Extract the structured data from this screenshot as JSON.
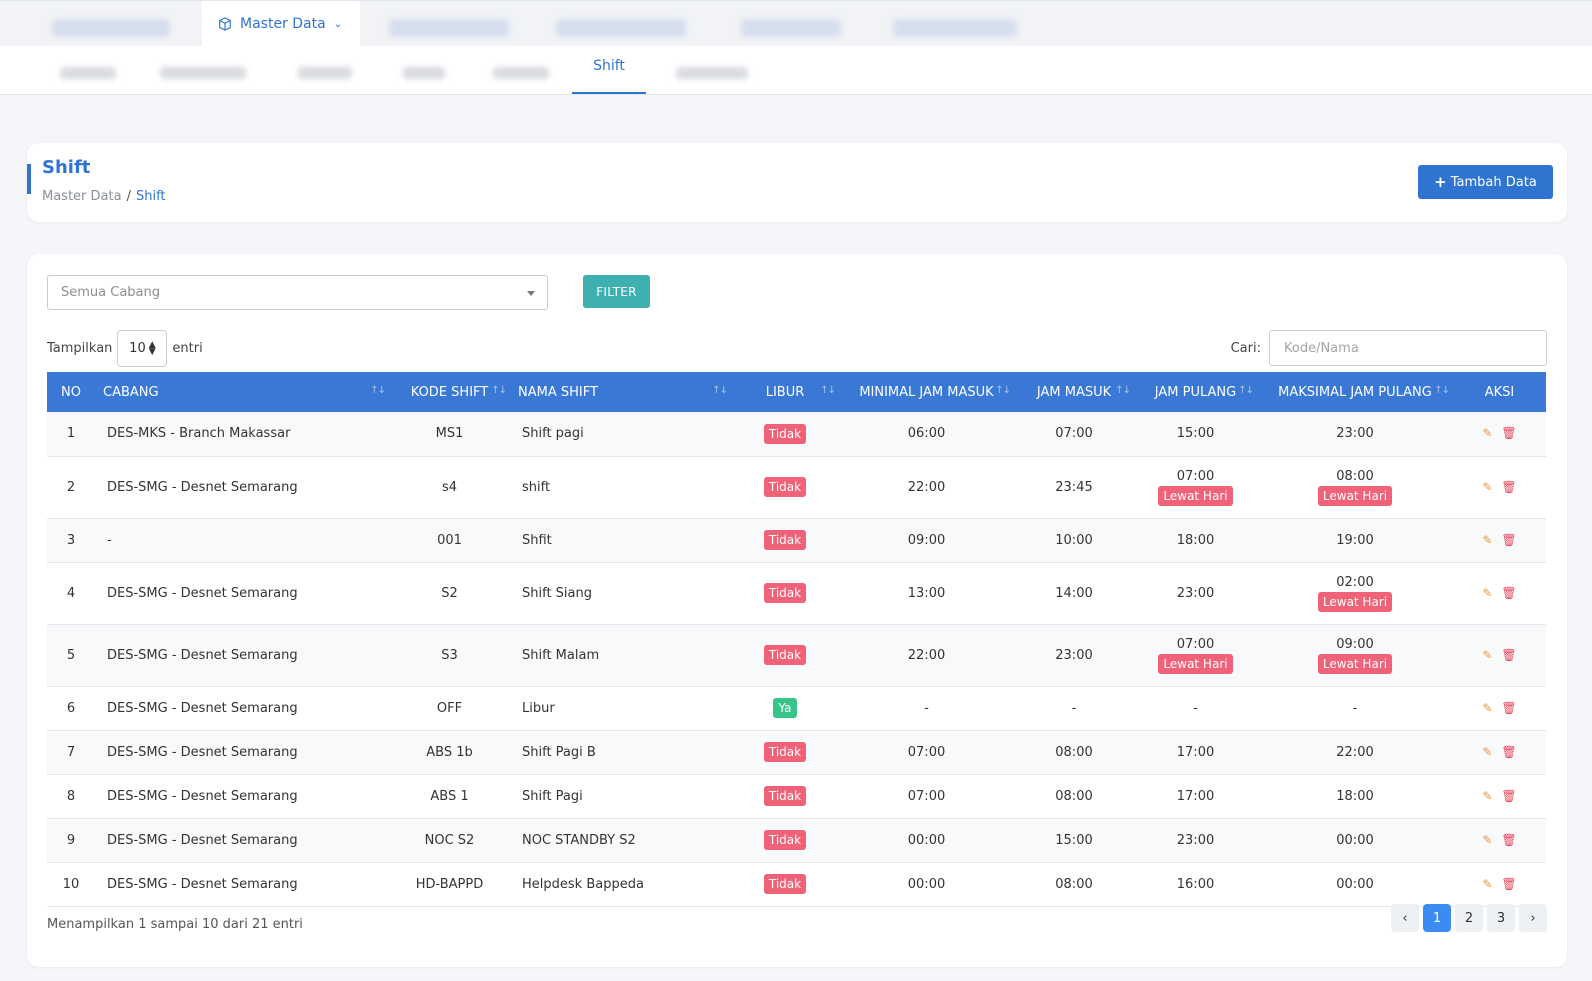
{
  "nav": {
    "active_menu": "Master Data",
    "active_tab": "Shift"
  },
  "header": {
    "title": "Shift",
    "breadcrumb": [
      "Master Data",
      "Shift"
    ],
    "add_button": "Tambah Data"
  },
  "filter": {
    "branch_value": "Semua Cabang",
    "button": "FILTER"
  },
  "length": {
    "prefix": "Tampilkan",
    "value": "10",
    "suffix": "entri"
  },
  "search": {
    "label": "Cari:",
    "placeholder": "Kode/Nama"
  },
  "table": {
    "columns": [
      "NO",
      "CABANG",
      "KODE SHIFT",
      "NAMA SHIFT",
      "LIBUR",
      "MINIMAL JAM MASUK",
      "JAM MASUK",
      "JAM PULANG",
      "MAKSIMAL JAM PULANG",
      "AKSI"
    ],
    "rows": [
      {
        "no": "1",
        "cabang": "DES-MKS - Branch Makassar",
        "kode": "MS1",
        "nama": "Shift pagi",
        "libur": "Tidak",
        "min_masuk": "06:00",
        "masuk": "07:00",
        "pulang": "15:00",
        "pulang_badge": "",
        "max_pulang": "23:00",
        "max_badge": ""
      },
      {
        "no": "2",
        "cabang": "DES-SMG - Desnet Semarang",
        "kode": "s4",
        "nama": "shift",
        "libur": "Tidak",
        "min_masuk": "22:00",
        "masuk": "23:45",
        "pulang": "07:00",
        "pulang_badge": "Lewat Hari",
        "max_pulang": "08:00",
        "max_badge": "Lewat Hari"
      },
      {
        "no": "3",
        "cabang": "-",
        "kode": "001",
        "nama": "Shfit",
        "libur": "Tidak",
        "min_masuk": "09:00",
        "masuk": "10:00",
        "pulang": "18:00",
        "pulang_badge": "",
        "max_pulang": "19:00",
        "max_badge": ""
      },
      {
        "no": "4",
        "cabang": "DES-SMG - Desnet Semarang",
        "kode": "S2",
        "nama": "Shift Siang",
        "libur": "Tidak",
        "min_masuk": "13:00",
        "masuk": "14:00",
        "pulang": "23:00",
        "pulang_badge": "",
        "max_pulang": "02:00",
        "max_badge": "Lewat Hari"
      },
      {
        "no": "5",
        "cabang": "DES-SMG - Desnet Semarang",
        "kode": "S3",
        "nama": "Shift Malam",
        "libur": "Tidak",
        "min_masuk": "22:00",
        "masuk": "23:00",
        "pulang": "07:00",
        "pulang_badge": "Lewat Hari",
        "max_pulang": "09:00",
        "max_badge": "Lewat Hari"
      },
      {
        "no": "6",
        "cabang": "DES-SMG - Desnet Semarang",
        "kode": "OFF",
        "nama": "Libur",
        "libur": "Ya",
        "min_masuk": "-",
        "masuk": "-",
        "pulang": "-",
        "pulang_badge": "",
        "max_pulang": "-",
        "max_badge": ""
      },
      {
        "no": "7",
        "cabang": "DES-SMG - Desnet Semarang",
        "kode": "ABS 1b",
        "nama": "Shift Pagi B",
        "libur": "Tidak",
        "min_masuk": "07:00",
        "masuk": "08:00",
        "pulang": "17:00",
        "pulang_badge": "",
        "max_pulang": "22:00",
        "max_badge": ""
      },
      {
        "no": "8",
        "cabang": "DES-SMG - Desnet Semarang",
        "kode": "ABS 1",
        "nama": "Shift Pagi",
        "libur": "Tidak",
        "min_masuk": "07:00",
        "masuk": "08:00",
        "pulang": "17:00",
        "pulang_badge": "",
        "max_pulang": "18:00",
        "max_badge": ""
      },
      {
        "no": "9",
        "cabang": "DES-SMG - Desnet Semarang",
        "kode": "NOC S2",
        "nama": "NOC STANDBY S2",
        "libur": "Tidak",
        "min_masuk": "00:00",
        "masuk": "15:00",
        "pulang": "23:00",
        "pulang_badge": "",
        "max_pulang": "00:00",
        "max_badge": ""
      },
      {
        "no": "10",
        "cabang": "DES-SMG - Desnet Semarang",
        "kode": "HD-BAPPD",
        "nama": "Helpdesk Bappeda",
        "libur": "Tidak",
        "min_masuk": "00:00",
        "masuk": "08:00",
        "pulang": "16:00",
        "pulang_badge": "",
        "max_pulang": "00:00",
        "max_badge": ""
      }
    ]
  },
  "footer": {
    "info": "Menampilkan 1 sampai 10 dari 21 entri",
    "pages": [
      "‹",
      "1",
      "2",
      "3",
      "›"
    ],
    "current_page": "1"
  },
  "colors": {
    "primary": "#2f74d0",
    "table_header": "#3a78d6",
    "filter_button": "#3fb0b0",
    "badge_no": "#ef6277",
    "badge_yes": "#38c58a",
    "edit_icon": "#f0963c",
    "delete_icon": "#e8455b"
  }
}
